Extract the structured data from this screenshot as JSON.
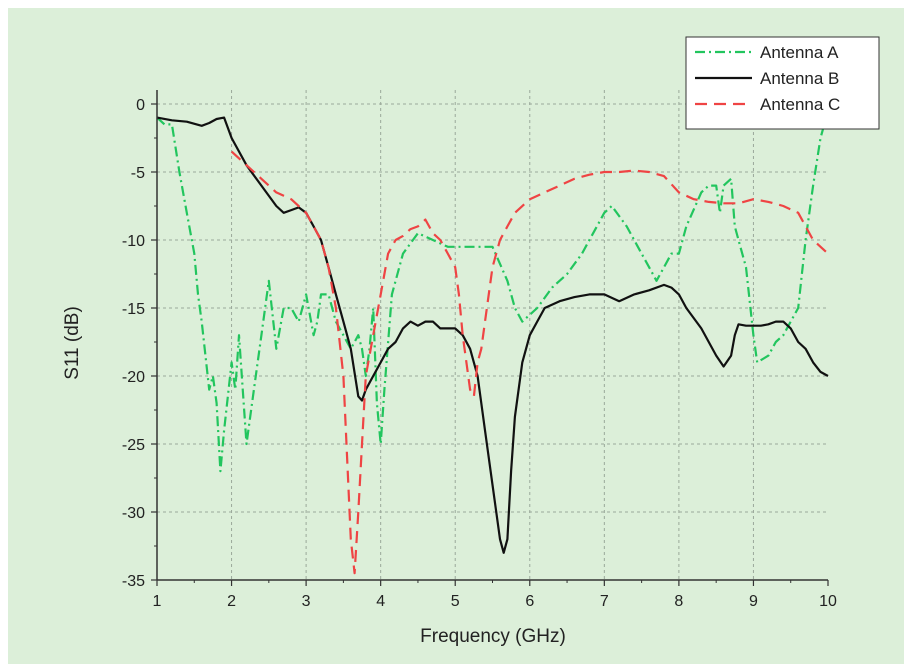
{
  "chart_data": {
    "type": "line",
    "title": "",
    "xlabel": "Frequency (GHz)",
    "ylabel": "S11 (dB)",
    "xlim": [
      1,
      10
    ],
    "ylim": [
      -35,
      1
    ],
    "xticks": [
      1,
      2,
      3,
      4,
      5,
      6,
      7,
      8,
      9,
      10
    ],
    "yticks": [
      0,
      -5,
      -10,
      -15,
      -20,
      -25,
      -30,
      -35
    ],
    "grid": true,
    "legend_position": "top-right",
    "colors": {
      "background": "#dcefd9",
      "plot_area": "#dcefd9",
      "grid": "#9aa89a",
      "axis": "#333333"
    },
    "series": [
      {
        "name": "Antenna A",
        "color": "#22c55e",
        "dash": "dash-dot",
        "points": [
          [
            1.0,
            -1.0
          ],
          [
            1.1,
            -1.5
          ],
          [
            1.2,
            -1.5
          ],
          [
            1.3,
            -5
          ],
          [
            1.4,
            -8
          ],
          [
            1.5,
            -11
          ],
          [
            1.55,
            -14
          ],
          [
            1.6,
            -16
          ],
          [
            1.7,
            -21
          ],
          [
            1.75,
            -20
          ],
          [
            1.8,
            -22
          ],
          [
            1.85,
            -27
          ],
          [
            1.9,
            -24
          ],
          [
            2.0,
            -19
          ],
          [
            2.05,
            -21
          ],
          [
            2.1,
            -17
          ],
          [
            2.2,
            -25
          ],
          [
            2.3,
            -21
          ],
          [
            2.4,
            -17
          ],
          [
            2.5,
            -13
          ],
          [
            2.6,
            -18
          ],
          [
            2.7,
            -15
          ],
          [
            2.8,
            -15
          ],
          [
            2.9,
            -16
          ],
          [
            3.0,
            -14
          ],
          [
            3.1,
            -17
          ],
          [
            3.15,
            -16
          ],
          [
            3.2,
            -14
          ],
          [
            3.3,
            -14
          ],
          [
            3.4,
            -16
          ],
          [
            3.5,
            -17
          ],
          [
            3.6,
            -18
          ],
          [
            3.7,
            -17
          ],
          [
            3.75,
            -18
          ],
          [
            3.8,
            -20
          ],
          [
            3.85,
            -18
          ],
          [
            3.9,
            -15
          ],
          [
            3.95,
            -22
          ],
          [
            4.0,
            -25
          ],
          [
            4.05,
            -21
          ],
          [
            4.15,
            -14
          ],
          [
            4.3,
            -11
          ],
          [
            4.5,
            -9.5
          ],
          [
            4.7,
            -10
          ],
          [
            4.9,
            -10.5
          ],
          [
            5.1,
            -10.5
          ],
          [
            5.3,
            -10.5
          ],
          [
            5.5,
            -10.5
          ],
          [
            5.7,
            -13
          ],
          [
            5.8,
            -15
          ],
          [
            5.9,
            -16
          ],
          [
            6.1,
            -15
          ],
          [
            6.3,
            -13.5
          ],
          [
            6.5,
            -12.5
          ],
          [
            6.7,
            -11
          ],
          [
            6.8,
            -10
          ],
          [
            6.9,
            -9
          ],
          [
            7.0,
            -8
          ],
          [
            7.1,
            -7.5
          ],
          [
            7.3,
            -9
          ],
          [
            7.5,
            -11
          ],
          [
            7.6,
            -12
          ],
          [
            7.7,
            -13
          ],
          [
            7.8,
            -12
          ],
          [
            7.9,
            -11
          ],
          [
            8.0,
            -11
          ],
          [
            8.1,
            -9
          ],
          [
            8.3,
            -6.5
          ],
          [
            8.4,
            -6
          ],
          [
            8.5,
            -6
          ],
          [
            8.55,
            -8
          ],
          [
            8.6,
            -6
          ],
          [
            8.7,
            -5.5
          ],
          [
            8.75,
            -9
          ],
          [
            8.8,
            -10
          ],
          [
            8.9,
            -12
          ],
          [
            9.0,
            -17
          ],
          [
            9.05,
            -19
          ],
          [
            9.2,
            -18.5
          ],
          [
            9.3,
            -17.5
          ],
          [
            9.4,
            -17
          ],
          [
            9.5,
            -16
          ],
          [
            9.6,
            -15
          ],
          [
            9.7,
            -10
          ],
          [
            9.8,
            -6
          ],
          [
            9.9,
            -2.5
          ],
          [
            9.95,
            -1.5
          ]
        ]
      },
      {
        "name": "Antenna B",
        "color": "#111111",
        "dash": "solid",
        "points": [
          [
            1.0,
            -1.0
          ],
          [
            1.2,
            -1.2
          ],
          [
            1.4,
            -1.3
          ],
          [
            1.6,
            -1.6
          ],
          [
            1.7,
            -1.4
          ],
          [
            1.8,
            -1.1
          ],
          [
            1.9,
            -1.0
          ],
          [
            2.0,
            -2.5
          ],
          [
            2.2,
            -4.5
          ],
          [
            2.4,
            -6
          ],
          [
            2.6,
            -7.5
          ],
          [
            2.7,
            -8.0
          ],
          [
            2.8,
            -7.8
          ],
          [
            2.9,
            -7.6
          ],
          [
            3.0,
            -8.0
          ],
          [
            3.1,
            -9.0
          ],
          [
            3.2,
            -10.0
          ],
          [
            3.3,
            -12
          ],
          [
            3.4,
            -14
          ],
          [
            3.5,
            -16
          ],
          [
            3.6,
            -18
          ],
          [
            3.7,
            -21.5
          ],
          [
            3.75,
            -21.8
          ],
          [
            3.8,
            -21
          ],
          [
            3.9,
            -20
          ],
          [
            4.0,
            -19
          ],
          [
            4.1,
            -18
          ],
          [
            4.2,
            -17.5
          ],
          [
            4.3,
            -16.5
          ],
          [
            4.4,
            -16
          ],
          [
            4.5,
            -16.3
          ],
          [
            4.6,
            -16
          ],
          [
            4.7,
            -16
          ],
          [
            4.8,
            -16.5
          ],
          [
            4.9,
            -16.5
          ],
          [
            5.0,
            -16.5
          ],
          [
            5.1,
            -17
          ],
          [
            5.2,
            -18
          ],
          [
            5.3,
            -20
          ],
          [
            5.4,
            -24
          ],
          [
            5.5,
            -28
          ],
          [
            5.6,
            -32
          ],
          [
            5.65,
            -33
          ],
          [
            5.7,
            -32
          ],
          [
            5.75,
            -27
          ],
          [
            5.8,
            -23
          ],
          [
            5.9,
            -19
          ],
          [
            6.0,
            -17
          ],
          [
            6.1,
            -16
          ],
          [
            6.2,
            -15
          ],
          [
            6.4,
            -14.5
          ],
          [
            6.6,
            -14.2
          ],
          [
            6.8,
            -14
          ],
          [
            7.0,
            -14
          ],
          [
            7.2,
            -14.5
          ],
          [
            7.4,
            -14
          ],
          [
            7.6,
            -13.7
          ],
          [
            7.8,
            -13.3
          ],
          [
            7.9,
            -13.5
          ],
          [
            8.0,
            -14
          ],
          [
            8.1,
            -15
          ],
          [
            8.3,
            -16.5
          ],
          [
            8.5,
            -18.5
          ],
          [
            8.6,
            -19.3
          ],
          [
            8.7,
            -18.5
          ],
          [
            8.75,
            -17
          ],
          [
            8.8,
            -16.2
          ],
          [
            8.9,
            -16.3
          ],
          [
            9.0,
            -16.3
          ],
          [
            9.1,
            -16.3
          ],
          [
            9.2,
            -16.2
          ],
          [
            9.3,
            -16
          ],
          [
            9.4,
            -16
          ],
          [
            9.5,
            -16.5
          ],
          [
            9.6,
            -17.5
          ],
          [
            9.7,
            -18
          ],
          [
            9.8,
            -19
          ],
          [
            9.9,
            -19.7
          ],
          [
            10.0,
            -20
          ]
        ]
      },
      {
        "name": "Antenna C",
        "color": "#ef4444",
        "dash": "dashed",
        "points": [
          [
            2.0,
            -3.5
          ],
          [
            2.2,
            -4.5
          ],
          [
            2.4,
            -5.5
          ],
          [
            2.6,
            -6.5
          ],
          [
            2.8,
            -7
          ],
          [
            3.0,
            -8
          ],
          [
            3.2,
            -10
          ],
          [
            3.3,
            -12
          ],
          [
            3.4,
            -15
          ],
          [
            3.5,
            -20
          ],
          [
            3.55,
            -26
          ],
          [
            3.6,
            -32
          ],
          [
            3.65,
            -34.5
          ],
          [
            3.7,
            -30
          ],
          [
            3.75,
            -25
          ],
          [
            3.8,
            -20
          ],
          [
            3.9,
            -17
          ],
          [
            4.0,
            -14
          ],
          [
            4.1,
            -11
          ],
          [
            4.2,
            -10
          ],
          [
            4.3,
            -9.7
          ],
          [
            4.4,
            -9.2
          ],
          [
            4.5,
            -9
          ],
          [
            4.6,
            -8.5
          ],
          [
            4.7,
            -9.5
          ],
          [
            4.8,
            -10
          ],
          [
            4.9,
            -11
          ],
          [
            5.0,
            -12
          ],
          [
            5.05,
            -14
          ],
          [
            5.1,
            -17
          ],
          [
            5.2,
            -21
          ],
          [
            5.25,
            -21.5
          ],
          [
            5.3,
            -19
          ],
          [
            5.35,
            -18
          ],
          [
            5.4,
            -16
          ],
          [
            5.5,
            -12
          ],
          [
            5.6,
            -10
          ],
          [
            5.7,
            -9
          ],
          [
            5.8,
            -8
          ],
          [
            6.0,
            -7
          ],
          [
            6.2,
            -6.5
          ],
          [
            6.4,
            -6
          ],
          [
            6.6,
            -5.5
          ],
          [
            6.8,
            -5.2
          ],
          [
            7.0,
            -5
          ],
          [
            7.2,
            -5
          ],
          [
            7.4,
            -4.9
          ],
          [
            7.6,
            -5
          ],
          [
            7.8,
            -5.3
          ],
          [
            8.0,
            -6.5
          ],
          [
            8.2,
            -7
          ],
          [
            8.4,
            -7.2
          ],
          [
            8.6,
            -7.3
          ],
          [
            8.8,
            -7.3
          ],
          [
            9.0,
            -7
          ],
          [
            9.2,
            -7.2
          ],
          [
            9.4,
            -7.5
          ],
          [
            9.6,
            -8
          ],
          [
            9.8,
            -10
          ],
          [
            10.0,
            -11
          ]
        ]
      }
    ]
  }
}
